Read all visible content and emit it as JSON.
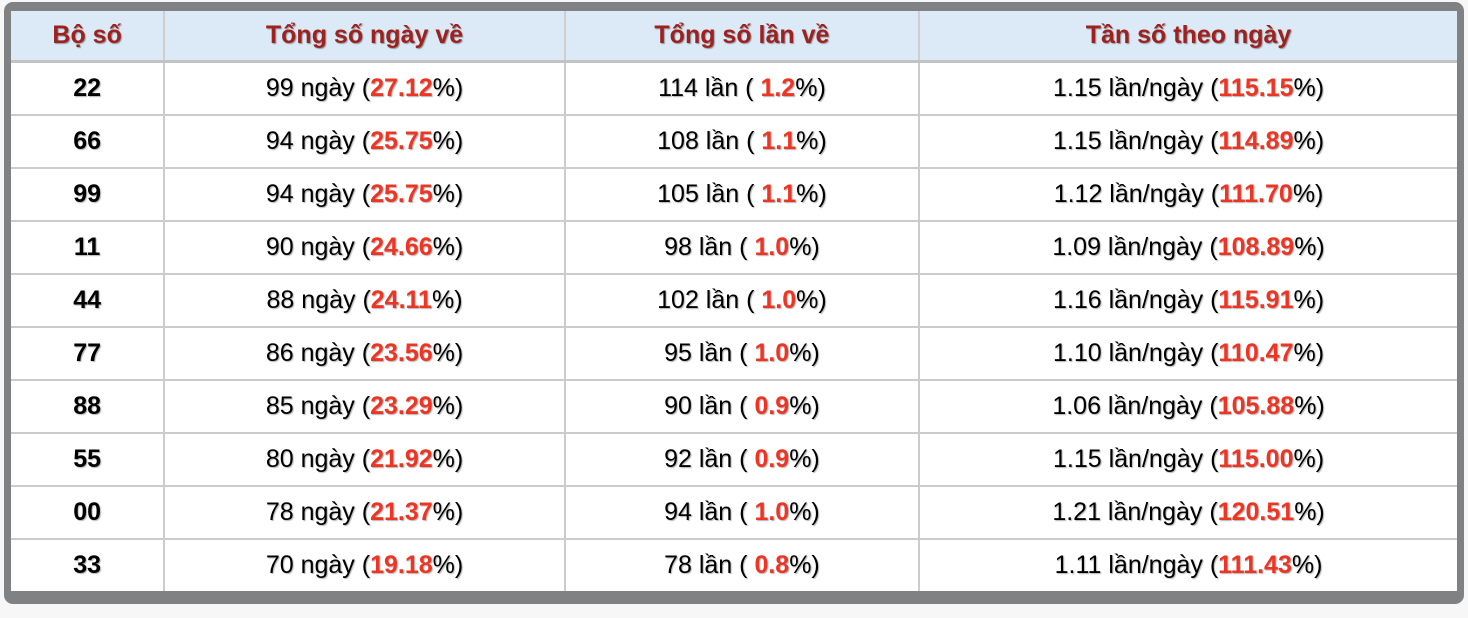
{
  "colors": {
    "header_text": "#9e211e",
    "header_bg": "#dce9f6",
    "accent_red": "#ee3524",
    "frame_border": "#7f8183",
    "grid_line": "#cccccc"
  },
  "table": {
    "columns": [
      {
        "label": "Bộ số"
      },
      {
        "label": "Tổng số ngày về"
      },
      {
        "label": "Tổng số lần về"
      },
      {
        "label": "Tần số theo ngày"
      }
    ],
    "pct_close": "%)",
    "rows": [
      {
        "pair": "22",
        "days_pre": "99 ngày (",
        "days_pct": "27.12",
        "times_pre": "114 lần ( ",
        "times_pct": "1.2",
        "freq_pre": "1.15 lần/ngày (",
        "freq_pct": "115.15"
      },
      {
        "pair": "66",
        "days_pre": "94 ngày (",
        "days_pct": "25.75",
        "times_pre": "108 lần ( ",
        "times_pct": "1.1",
        "freq_pre": "1.15 lần/ngày (",
        "freq_pct": "114.89"
      },
      {
        "pair": "99",
        "days_pre": "94 ngày (",
        "days_pct": "25.75",
        "times_pre": "105 lần ( ",
        "times_pct": "1.1",
        "freq_pre": "1.12 lần/ngày (",
        "freq_pct": "111.70"
      },
      {
        "pair": "11",
        "days_pre": "90 ngày (",
        "days_pct": "24.66",
        "times_pre": "98 lần ( ",
        "times_pct": "1.0",
        "freq_pre": "1.09 lần/ngày (",
        "freq_pct": "108.89"
      },
      {
        "pair": "44",
        "days_pre": "88 ngày (",
        "days_pct": "24.11",
        "times_pre": "102 lần ( ",
        "times_pct": "1.0",
        "freq_pre": "1.16 lần/ngày (",
        "freq_pct": "115.91"
      },
      {
        "pair": "77",
        "days_pre": "86 ngày (",
        "days_pct": "23.56",
        "times_pre": "95 lần ( ",
        "times_pct": "1.0",
        "freq_pre": "1.10 lần/ngày (",
        "freq_pct": "110.47"
      },
      {
        "pair": "88",
        "days_pre": "85 ngày (",
        "days_pct": "23.29",
        "times_pre": "90 lần ( ",
        "times_pct": "0.9",
        "freq_pre": "1.06 lần/ngày (",
        "freq_pct": "105.88"
      },
      {
        "pair": "55",
        "days_pre": "80 ngày (",
        "days_pct": "21.92",
        "times_pre": "92 lần ( ",
        "times_pct": "0.9",
        "freq_pre": "1.15 lần/ngày (",
        "freq_pct": "115.00"
      },
      {
        "pair": "00",
        "days_pre": "78 ngày (",
        "days_pct": "21.37",
        "times_pre": "94 lần ( ",
        "times_pct": "1.0",
        "freq_pre": "1.21 lần/ngày (",
        "freq_pct": "120.51"
      },
      {
        "pair": "33",
        "days_pre": "70 ngày (",
        "days_pct": "19.18",
        "times_pre": "78 lần ( ",
        "times_pct": "0.8",
        "freq_pre": "1.11 lần/ngày (",
        "freq_pct": "111.43"
      }
    ]
  }
}
